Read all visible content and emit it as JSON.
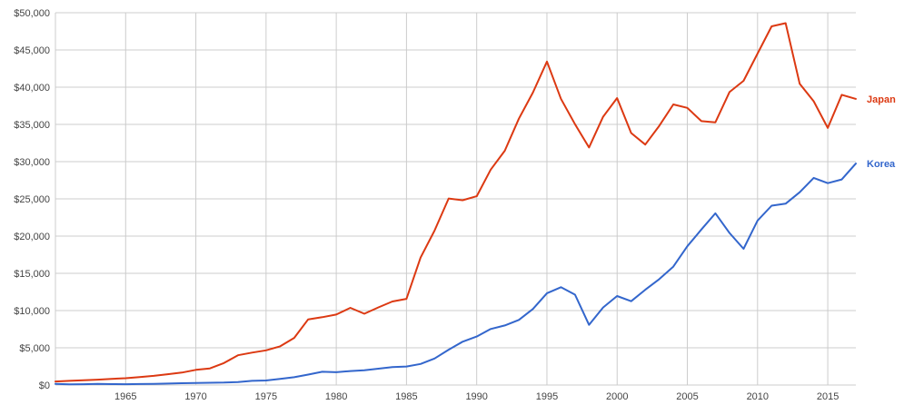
{
  "chart_data": {
    "type": "line",
    "title": "",
    "xlabel": "",
    "ylabel": "",
    "xlim": [
      1960,
      2017
    ],
    "ylim": [
      0,
      50000
    ],
    "grid": true,
    "legend_placement": "right, at end of lines",
    "x_ticks": [
      1965,
      1970,
      1975,
      1980,
      1985,
      1990,
      1995,
      2000,
      2005,
      2010,
      2015
    ],
    "y_ticks": [
      0,
      5000,
      10000,
      15000,
      20000,
      25000,
      30000,
      35000,
      40000,
      45000,
      50000
    ],
    "y_tick_labels": [
      "$0",
      "$5,000",
      "$10,000",
      "$15,000",
      "$20,000",
      "$25,000",
      "$30,000",
      "$35,000",
      "$40,000",
      "$45,000",
      "$50,000"
    ],
    "x": [
      1960,
      1961,
      1962,
      1963,
      1964,
      1965,
      1966,
      1967,
      1968,
      1969,
      1970,
      1971,
      1972,
      1973,
      1974,
      1975,
      1976,
      1977,
      1978,
      1979,
      1980,
      1981,
      1982,
      1983,
      1984,
      1985,
      1986,
      1987,
      1988,
      1989,
      1990,
      1991,
      1992,
      1993,
      1994,
      1995,
      1996,
      1997,
      1998,
      1999,
      2000,
      2001,
      2002,
      2003,
      2004,
      2005,
      2006,
      2007,
      2008,
      2009,
      2010,
      2011,
      2012,
      2013,
      2014,
      2015,
      2016,
      2017
    ],
    "series": [
      {
        "name": "Japan",
        "color": "#dc3912",
        "values": [
          479,
          563,
          633,
          717,
          835,
          919,
          1058,
          1228,
          1451,
          1669,
          2037,
          2234,
          2951,
          3998,
          4354,
          4659,
          5197,
          6335,
          8821,
          9105,
          9465,
          10361,
          9578,
          10425,
          11217,
          11577,
          17113,
          20745,
          25051,
          24813,
          25359,
          28925,
          31465,
          35766,
          39269,
          43440,
          38437,
          35022,
          31903,
          36027,
          38532,
          33846,
          32289,
          34808,
          37689,
          37218,
          35434,
          35275,
          39339,
          40855,
          44508,
          48168,
          48603,
          40454,
          38109,
          34524,
          38972,
          38428
        ]
      },
      {
        "name": "Korea",
        "color": "#3366cc",
        "values": [
          158,
          94,
          106,
          146,
          124,
          108,
          133,
          161,
          198,
          243,
          279,
          301,
          324,
          406,
          563,
          615,
          831,
          1051,
          1406,
          1784,
          1715,
          1883,
          1992,
          2199,
          2413,
          2482,
          2835,
          3555,
          4749,
          5817,
          6516,
          7523,
          8001,
          8741,
          10206,
          12333,
          13138,
          12131,
          8085,
          10409,
          11948,
          11253,
          12788,
          14219,
          15908,
          18640,
          20888,
          23061,
          20431,
          18292,
          22087,
          24080,
          24359,
          25890,
          27811,
          27105,
          27608,
          29743
        ]
      }
    ]
  }
}
